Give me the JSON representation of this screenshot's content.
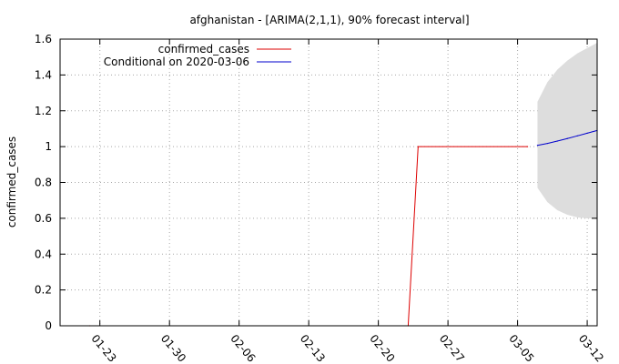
{
  "chart_data": {
    "type": "line",
    "title": "afghanistan -  [ARIMA(2,1,1), 90% forecast interval]",
    "xlabel": "",
    "ylabel": "confirmed_cases",
    "x_axis_type": "date",
    "xlim": [
      "2020-01-19",
      "2020-03-13"
    ],
    "ylim": [
      0,
      1.6
    ],
    "yticks": [
      0,
      0.2,
      0.4,
      0.6,
      0.8,
      1,
      1.2,
      1.4,
      1.6
    ],
    "ytick_labels": [
      "0",
      "0.2",
      "0.4",
      "0.6",
      "0.8",
      "1",
      "1.2",
      "1.4",
      "1.6"
    ],
    "xticks": [
      "2020-01-23",
      "2020-01-30",
      "2020-02-06",
      "2020-02-13",
      "2020-02-20",
      "2020-02-27",
      "2020-03-05",
      "2020-03-12"
    ],
    "xtick_labels": [
      "01-23",
      "01-30",
      "02-06",
      "02-13",
      "02-20",
      "02-27",
      "03-05",
      "03-12"
    ],
    "grid": true,
    "grid_style": "dotted",
    "legend_position": "top-left",
    "series": [
      {
        "name": "confirmed_cases",
        "color": "#dd0000",
        "x": [
          "2020-01-22",
          "2020-02-23",
          "2020-02-24",
          "2020-03-06"
        ],
        "y": [
          0,
          0,
          1,
          1
        ]
      },
      {
        "name": "Conditional on 2020-03-06",
        "color": "#0000cc",
        "x": [
          "2020-03-07",
          "2020-03-08",
          "2020-03-09",
          "2020-03-10",
          "2020-03-11",
          "2020-03-12",
          "2020-03-13"
        ],
        "y": [
          1.007,
          1.018,
          1.031,
          1.045,
          1.06,
          1.075,
          1.09
        ]
      }
    ],
    "forecast_interval": {
      "color": "#dddddd",
      "x": [
        "2020-03-07",
        "2020-03-08",
        "2020-03-09",
        "2020-03-10",
        "2020-03-11",
        "2020-03-12",
        "2020-03-13"
      ],
      "lower": [
        0.77,
        0.69,
        0.645,
        0.62,
        0.605,
        0.6,
        0.6
      ],
      "upper": [
        1.25,
        1.36,
        1.43,
        1.48,
        1.52,
        1.55,
        1.58
      ]
    }
  }
}
